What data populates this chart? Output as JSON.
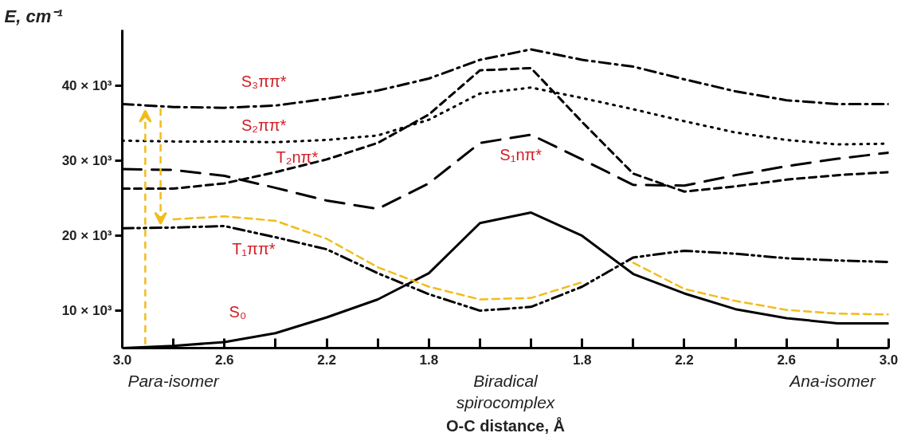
{
  "chart_data": {
    "type": "line",
    "xlabel": "O-C distance, Å",
    "ylabel": "E, cm⁻¹",
    "categories": [
      "3.0",
      null,
      "2.6",
      null,
      "2.2",
      null,
      "1.8",
      null,
      null,
      "1.8",
      null,
      "2.2",
      null,
      "2.6",
      null,
      "3.0"
    ],
    "ylim": [
      5000,
      47500
    ],
    "yticks": [
      {
        "value": 10000,
        "label": "10 × 10³"
      },
      {
        "value": 20000,
        "label": "20 × 10³"
      },
      {
        "value": 30000,
        "label": "30 × 10³"
      },
      {
        "value": 40000,
        "label": "40 × 10³"
      }
    ],
    "series": [
      {
        "color": "#000000",
        "line_style": "dashdot",
        "values": [
          37600,
          37200,
          37100,
          37400,
          38300,
          39400,
          41000,
          43500,
          44900,
          43500,
          42600,
          40900,
          39300,
          38100,
          37600,
          37600
        ]
      },
      {
        "color": "#000000",
        "line_style": "dotted",
        "values": [
          32700,
          32600,
          32600,
          32500,
          32800,
          33400,
          35500,
          39000,
          39800,
          38400,
          36900,
          35300,
          33800,
          32800,
          32200,
          32300
        ]
      },
      {
        "color": "#000000",
        "line_style": "dashed",
        "values": [
          26300,
          26300,
          27000,
          28500,
          30200,
          32400,
          36200,
          42100,
          42400,
          35200,
          28300,
          25900,
          26600,
          27500,
          28100,
          28500
        ]
      },
      {
        "color": "#000000",
        "line_style": "longdash",
        "values": [
          28900,
          28800,
          28000,
          26400,
          24700,
          23600,
          27000,
          32400,
          33500,
          30200,
          26800,
          26700,
          28100,
          29300,
          30300,
          31100
        ]
      },
      {
        "color": "#000000",
        "line_style": "dashdotdot",
        "values": [
          21000,
          21100,
          21300,
          19800,
          18200,
          15000,
          12200,
          10000,
          10500,
          13200,
          17100,
          18000,
          17600,
          17000,
          16700,
          16500
        ]
      },
      {
        "color": "#000000",
        "line_style": "solid",
        "values": [
          5000,
          5300,
          5800,
          7000,
          9100,
          11500,
          15000,
          21700,
          23100,
          20000,
          14900,
          12300,
          10200,
          9000,
          8300,
          8300
        ]
      },
      {
        "color": "#f2bc1b",
        "line_style": "dashed",
        "values": [
          null,
          22200,
          22600,
          22000,
          19600,
          15800,
          13200,
          11500,
          11700,
          13800,
          null,
          null,
          null,
          null,
          null,
          null
        ]
      },
      {
        "color": "#f2bc1b",
        "line_style": "dashed",
        "values": [
          null,
          null,
          null,
          null,
          null,
          null,
          null,
          null,
          null,
          null,
          16400,
          12900,
          11300,
          10100,
          9600,
          9500
        ]
      }
    ],
    "annotations": [
      "Para-isomer",
      "Biradical\nspirocomplex",
      "Ana-isomer",
      "S₃ππ*",
      "S₂ππ*",
      "T₂nπ*",
      "S₁nπ*",
      "T₁ππ*",
      "S₀"
    ]
  }
}
